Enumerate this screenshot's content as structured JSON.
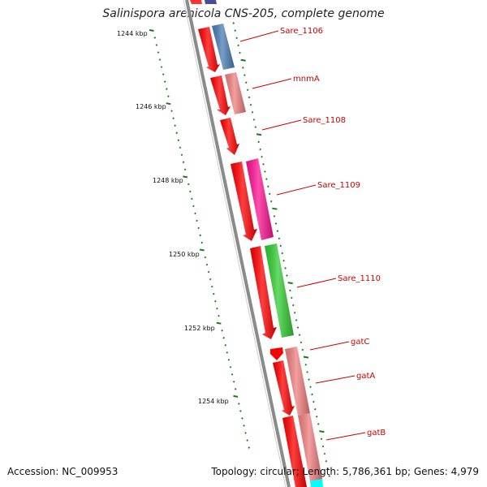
{
  "title": "Salinispora arenicola CNS-205, complete genome",
  "accession": "Accession: NC_009953",
  "stats": "Topology: circular; Length: 5,786,361 bp; Genes: 4,979",
  "colors": {
    "backbone": "#8a8a8a",
    "tick": "#1a7a1a",
    "label": "#cc0000",
    "forward_strand": "#ff0000"
  },
  "scale_labels": [
    "1244 kbp",
    "1246 kbp",
    "1248 kbp",
    "1250 kbp",
    "1252 kbp",
    "1254 kbp"
  ],
  "gene_labels": [
    {
      "name": "Sare_1106",
      "color": "#4a7fb5"
    },
    {
      "name": "mnmA",
      "color": "#f08080"
    },
    {
      "name": "Sare_1108",
      "color": "#ff0000"
    },
    {
      "name": "Sare_1109",
      "color": "#ff1493"
    },
    {
      "name": "Sare_1110",
      "color": "#33cc33"
    },
    {
      "name": "gatC",
      "color": "#ff0000"
    },
    {
      "name": "gatA",
      "color": "#f08080"
    },
    {
      "name": "gatB",
      "color": "#f08080"
    }
  ]
}
